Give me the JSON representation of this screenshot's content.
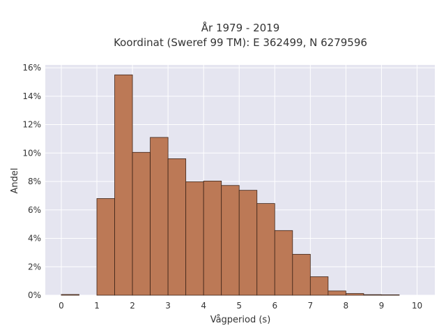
{
  "chart_data": {
    "type": "bar",
    "title": "År 1979 - 2019",
    "subtitle": "Koordinat (Sweref 99 TM): E 362499, N 6279596",
    "xlabel": "Vågperiod (s)",
    "ylabel": "Andel",
    "bin_width": 0.5,
    "bin_starts": [
      0,
      0.5,
      1,
      1.5,
      2,
      2.5,
      3,
      3.5,
      4,
      4.5,
      5,
      5.5,
      6,
      6.5,
      7,
      7.5,
      8,
      8.5,
      9,
      9.5
    ],
    "values": [
      0.05,
      0,
      6.8,
      15.5,
      10.05,
      11.1,
      9.6,
      7.98,
      8.03,
      7.72,
      7.38,
      6.45,
      4.55,
      2.88,
      1.3,
      0.3,
      0.12,
      0.04,
      0.03,
      0
    ],
    "xlim": [
      -0.45,
      10.5
    ],
    "ylim": [
      0,
      16.2
    ],
    "xticks": [
      0,
      1,
      2,
      3,
      4,
      5,
      6,
      7,
      8,
      9,
      10
    ],
    "yticks": [
      0,
      2,
      4,
      6,
      8,
      10,
      12,
      14,
      16
    ],
    "ytick_suffix": "%",
    "grid": true,
    "colors": {
      "bar_fill": "#bc7956",
      "bar_stroke": "#3d2418",
      "plot_bg": "#e5e5f0",
      "grid": "#ffffff",
      "text": "#333333"
    }
  }
}
